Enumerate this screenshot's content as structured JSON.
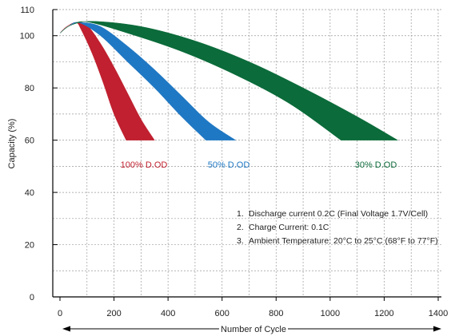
{
  "chart_data": {
    "type": "area",
    "xlabel": "Number of Cycle",
    "ylabel": "Capacity (%)",
    "xlim": [
      0,
      1400
    ],
    "ylim": [
      0,
      110
    ],
    "x_ticks": [
      0,
      200,
      400,
      600,
      800,
      1000,
      1200,
      1400
    ],
    "y_ticks": [
      0,
      20,
      40,
      60,
      80,
      100,
      110
    ],
    "grid": true,
    "series": [
      {
        "name": "100% D.OD",
        "color": "#c0202f",
        "upper": [
          [
            0,
            101
          ],
          [
            25,
            103.5
          ],
          [
            60,
            105
          ],
          [
            100,
            104
          ],
          [
            150,
            97
          ],
          [
            200,
            88
          ],
          [
            250,
            78
          ],
          [
            300,
            68
          ],
          [
            350,
            60
          ]
        ],
        "lower": [
          [
            0,
            101
          ],
          [
            25,
            103.5
          ],
          [
            60,
            105
          ],
          [
            80,
            102
          ],
          [
            120,
            93
          ],
          [
            160,
            82
          ],
          [
            200,
            70
          ],
          [
            245,
            60
          ]
        ]
      },
      {
        "name": "50% D.OD",
        "color": "#1f78c4",
        "upper": [
          [
            0,
            101
          ],
          [
            30,
            103.5
          ],
          [
            70,
            105
          ],
          [
            150,
            103.5
          ],
          [
            250,
            96
          ],
          [
            350,
            87
          ],
          [
            450,
            77
          ],
          [
            550,
            67
          ],
          [
            650,
            60
          ]
        ],
        "lower": [
          [
            0,
            101
          ],
          [
            30,
            103.5
          ],
          [
            70,
            105
          ],
          [
            150,
            100
          ],
          [
            250,
            90
          ],
          [
            350,
            80
          ],
          [
            450,
            69
          ],
          [
            540,
            60
          ]
        ]
      },
      {
        "name": "30% D.OD",
        "color": "#0b6b3a",
        "upper": [
          [
            0,
            101
          ],
          [
            40,
            104
          ],
          [
            120,
            105.5
          ],
          [
            300,
            103.5
          ],
          [
            500,
            98
          ],
          [
            700,
            90
          ],
          [
            900,
            80
          ],
          [
            1100,
            69
          ],
          [
            1250,
            60
          ]
        ],
        "lower": [
          [
            0,
            101
          ],
          [
            40,
            104
          ],
          [
            100,
            105.3
          ],
          [
            250,
            101
          ],
          [
            450,
            94
          ],
          [
            650,
            85
          ],
          [
            850,
            74
          ],
          [
            1040,
            60
          ]
        ]
      }
    ],
    "notes": [
      "Discharge current 0.2C (Final Voltage 1.7V/Cell)",
      "Charge Current: 0.1C",
      "Ambient Temperature: 20°C to 25°C (68°F to 77°F)"
    ]
  }
}
